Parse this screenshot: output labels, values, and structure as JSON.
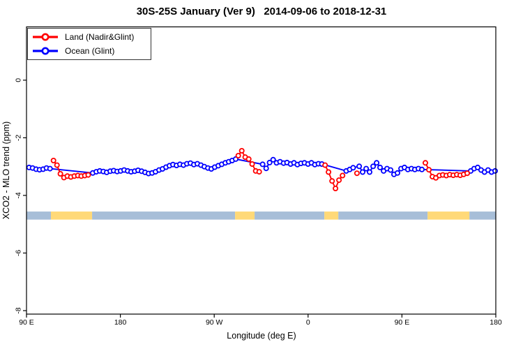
{
  "chart_data": {
    "type": "line",
    "title": "30S-25S January (Ver 9)   2014-09-06 to 2018-12-31",
    "xlabel": "Longitude (deg E)",
    "ylabel": "XCO2 - MLO trend (ppm)",
    "x_axis_start_deg": 90,
    "x_axis_span_deg": 450,
    "y_plot_range": [
      -8.12,
      1.85
    ],
    "x_ticks": [
      {
        "value": 90,
        "label": "90 E"
      },
      {
        "value": 180,
        "label": "180"
      },
      {
        "value": 270,
        "label": "90 W"
      },
      {
        "value": 360,
        "label": "0"
      },
      {
        "value": 450,
        "label": "90 E"
      },
      {
        "value": 540,
        "label": "180"
      }
    ],
    "y_ticks": [
      {
        "value": 0,
        "label": "0"
      },
      {
        "value": -2,
        "label": "-2"
      },
      {
        "value": -4,
        "label": "-4"
      },
      {
        "value": -6,
        "label": "-6"
      },
      {
        "value": -8,
        "label": "-8"
      }
    ],
    "series": [
      {
        "name": "Ocean (Glint)",
        "color": "#0000ff",
        "marker": "open-circle",
        "segments": [
          [
            [
              92.5,
              -3.03
            ],
            [
              95.8,
              -3.05
            ],
            [
              99.2,
              -3.09
            ],
            [
              102.5,
              -3.11
            ],
            [
              105.9,
              -3.09
            ],
            [
              109.2,
              -3.05
            ],
            [
              112.5,
              -3.07
            ],
            [
              153.5,
              -3.22
            ],
            [
              156.9,
              -3.18
            ],
            [
              160.2,
              -3.15
            ],
            [
              163.6,
              -3.17
            ],
            [
              166.9,
              -3.2
            ],
            [
              170.3,
              -3.16
            ],
            [
              173.6,
              -3.14
            ],
            [
              176.9,
              -3.17
            ],
            [
              180.3,
              -3.15
            ],
            [
              183.6,
              -3.12
            ],
            [
              187.0,
              -3.15
            ],
            [
              190.3,
              -3.18
            ],
            [
              193.7,
              -3.16
            ],
            [
              197.0,
              -3.13
            ],
            [
              200.4,
              -3.16
            ],
            [
              203.7,
              -3.2
            ],
            [
              207.0,
              -3.24
            ],
            [
              210.4,
              -3.22
            ],
            [
              213.7,
              -3.18
            ],
            [
              217.1,
              -3.12
            ],
            [
              220.4,
              -3.08
            ],
            [
              223.8,
              -3.02
            ],
            [
              227.1,
              -2.97
            ],
            [
              230.4,
              -2.93
            ],
            [
              233.8,
              -2.96
            ],
            [
              237.1,
              -2.92
            ],
            [
              240.5,
              -2.95
            ],
            [
              243.8,
              -2.9
            ],
            [
              247.2,
              -2.88
            ],
            [
              250.5,
              -2.93
            ],
            [
              253.8,
              -2.9
            ],
            [
              257.2,
              -2.95
            ],
            [
              260.5,
              -3.0
            ],
            [
              263.9,
              -3.05
            ],
            [
              267.2,
              -3.08
            ],
            [
              270.5,
              -3.02
            ],
            [
              273.9,
              -2.97
            ],
            [
              277.2,
              -2.92
            ],
            [
              280.6,
              -2.87
            ],
            [
              283.9,
              -2.83
            ],
            [
              287.2,
              -2.79
            ],
            [
              290.6,
              -2.74
            ],
            [
              316.4,
              -2.92
            ],
            [
              319.8,
              -3.06
            ],
            [
              323.1,
              -2.86
            ],
            [
              326.5,
              -2.76
            ],
            [
              329.8,
              -2.87
            ],
            [
              333.1,
              -2.83
            ],
            [
              336.5,
              -2.88
            ],
            [
              339.8,
              -2.86
            ],
            [
              343.2,
              -2.91
            ],
            [
              346.5,
              -2.87
            ],
            [
              349.8,
              -2.93
            ],
            [
              353.2,
              -2.89
            ],
            [
              356.5,
              -2.87
            ],
            [
              359.9,
              -2.91
            ],
            [
              363.2,
              -2.87
            ],
            [
              366.5,
              -2.93
            ],
            [
              369.9,
              -2.9
            ],
            [
              373.2,
              -2.91
            ],
            [
              396.6,
              -3.15
            ],
            [
              399.9,
              -3.1
            ],
            [
              403.2,
              -3.04
            ],
            [
              409.0,
              -2.99
            ],
            [
              412.3,
              -3.19
            ],
            [
              415.7,
              -3.07
            ],
            [
              419.0,
              -3.19
            ],
            [
              422.4,
              -2.99
            ],
            [
              425.7,
              -2.87
            ],
            [
              429.0,
              -3.03
            ],
            [
              432.4,
              -3.15
            ],
            [
              435.7,
              -3.07
            ],
            [
              439.1,
              -3.12
            ],
            [
              442.4,
              -3.27
            ],
            [
              445.7,
              -3.22
            ],
            [
              449.1,
              -3.07
            ],
            [
              452.4,
              -3.03
            ],
            [
              455.7,
              -3.1
            ],
            [
              459.1,
              -3.07
            ],
            [
              462.4,
              -3.1
            ],
            [
              465.8,
              -3.07
            ],
            [
              469.1,
              -3.1
            ],
            [
              515.9,
              -3.15
            ],
            [
              519.2,
              -3.07
            ],
            [
              522.6,
              -3.03
            ],
            [
              525.9,
              -3.12
            ],
            [
              529.2,
              -3.19
            ],
            [
              532.6,
              -3.12
            ],
            [
              535.9,
              -3.19
            ],
            [
              539.3,
              -3.15
            ]
          ]
        ]
      },
      {
        "name": "Land (Nadir&Glint)",
        "color": "#ff0000",
        "marker": "open-circle",
        "segments": [
          [
            [
              115.9,
              -2.79
            ],
            [
              119.2,
              -2.95
            ],
            [
              122.5,
              -3.25
            ],
            [
              125.9,
              -3.38
            ],
            [
              129.2,
              -3.33
            ],
            [
              132.5,
              -3.36
            ],
            [
              135.9,
              -3.33
            ],
            [
              139.2,
              -3.31
            ],
            [
              142.5,
              -3.33
            ],
            [
              145.9,
              -3.31
            ],
            [
              149.2,
              -3.29
            ]
          ],
          [
            [
              293.1,
              -2.62
            ],
            [
              296.4,
              -2.45
            ],
            [
              299.7,
              -2.67
            ],
            [
              303.1,
              -2.74
            ],
            [
              306.4,
              -2.91
            ],
            [
              309.8,
              -3.15
            ],
            [
              313.1,
              -3.18
            ]
          ],
          [
            [
              376.3,
              -2.95
            ],
            [
              379.6,
              -3.19
            ],
            [
              383.0,
              -3.5
            ],
            [
              386.3,
              -3.76
            ],
            [
              389.6,
              -3.47
            ],
            [
              393.0,
              -3.31
            ]
          ],
          [
            [
              406.9,
              -3.23
            ]
          ],
          [
            [
              472.5,
              -2.87
            ],
            [
              475.9,
              -3.11
            ],
            [
              479.2,
              -3.35
            ],
            [
              482.5,
              -3.39
            ],
            [
              485.9,
              -3.31
            ],
            [
              489.2,
              -3.29
            ],
            [
              492.5,
              -3.31
            ],
            [
              495.9,
              -3.28
            ],
            [
              499.2,
              -3.3
            ],
            [
              502.6,
              -3.28
            ],
            [
              505.9,
              -3.3
            ],
            [
              509.2,
              -3.27
            ],
            [
              512.6,
              -3.23
            ]
          ]
        ]
      }
    ],
    "surface_band": {
      "value_top": -4.56,
      "value_bottom": -4.84,
      "colors": {
        "ocean": "#a7bed8",
        "land": "#ffd978"
      },
      "segments": [
        {
          "from": 90,
          "to": 113.4,
          "type": "ocean"
        },
        {
          "from": 113.4,
          "to": 152.9,
          "type": "land"
        },
        {
          "from": 152.9,
          "to": 290.0,
          "type": "ocean"
        },
        {
          "from": 290.0,
          "to": 308.7,
          "type": "land"
        },
        {
          "from": 308.7,
          "to": 375.6,
          "type": "ocean"
        },
        {
          "from": 375.6,
          "to": 389.0,
          "type": "land"
        },
        {
          "from": 389.0,
          "to": 474.6,
          "type": "ocean"
        },
        {
          "from": 474.6,
          "to": 514.7,
          "type": "land"
        },
        {
          "from": 514.7,
          "to": 540.0,
          "type": "ocean"
        }
      ]
    },
    "legend_position": "top-left",
    "grid": false
  },
  "legend": {
    "items": [
      {
        "id": "land",
        "label": "Land (Nadir&Glint)",
        "color": "#ff0000"
      },
      {
        "id": "ocean",
        "label": "Ocean (Glint)",
        "color": "#0000ff"
      }
    ]
  }
}
